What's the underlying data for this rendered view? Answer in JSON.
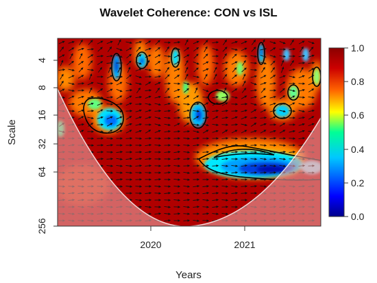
{
  "chart_data": {
    "type": "heatmap",
    "title": "Wavelet Coherence: CON vs ISL",
    "xlabel": "Years",
    "ylabel": "Scale",
    "x_ticks": [
      "2020",
      "2021"
    ],
    "y_ticks": [
      "4",
      "8",
      "16",
      "32",
      "64",
      "256"
    ],
    "y_scale": "log2",
    "y_reversed": true,
    "colorbar": {
      "ticks": [
        "0.0",
        "0.2",
        "0.4",
        "0.6",
        "0.8",
        "1.0"
      ],
      "range": [
        0,
        1
      ],
      "colors": [
        "#00008b",
        "#0000ff",
        "#00c8ff",
        "#00ff96",
        "#ffff00",
        "#ff6400",
        "#cc0000",
        "#8b0000"
      ]
    },
    "colors": {
      "background": "#a80000",
      "cone_of_influence": "#e8a0a0"
    },
    "legend": "right"
  }
}
